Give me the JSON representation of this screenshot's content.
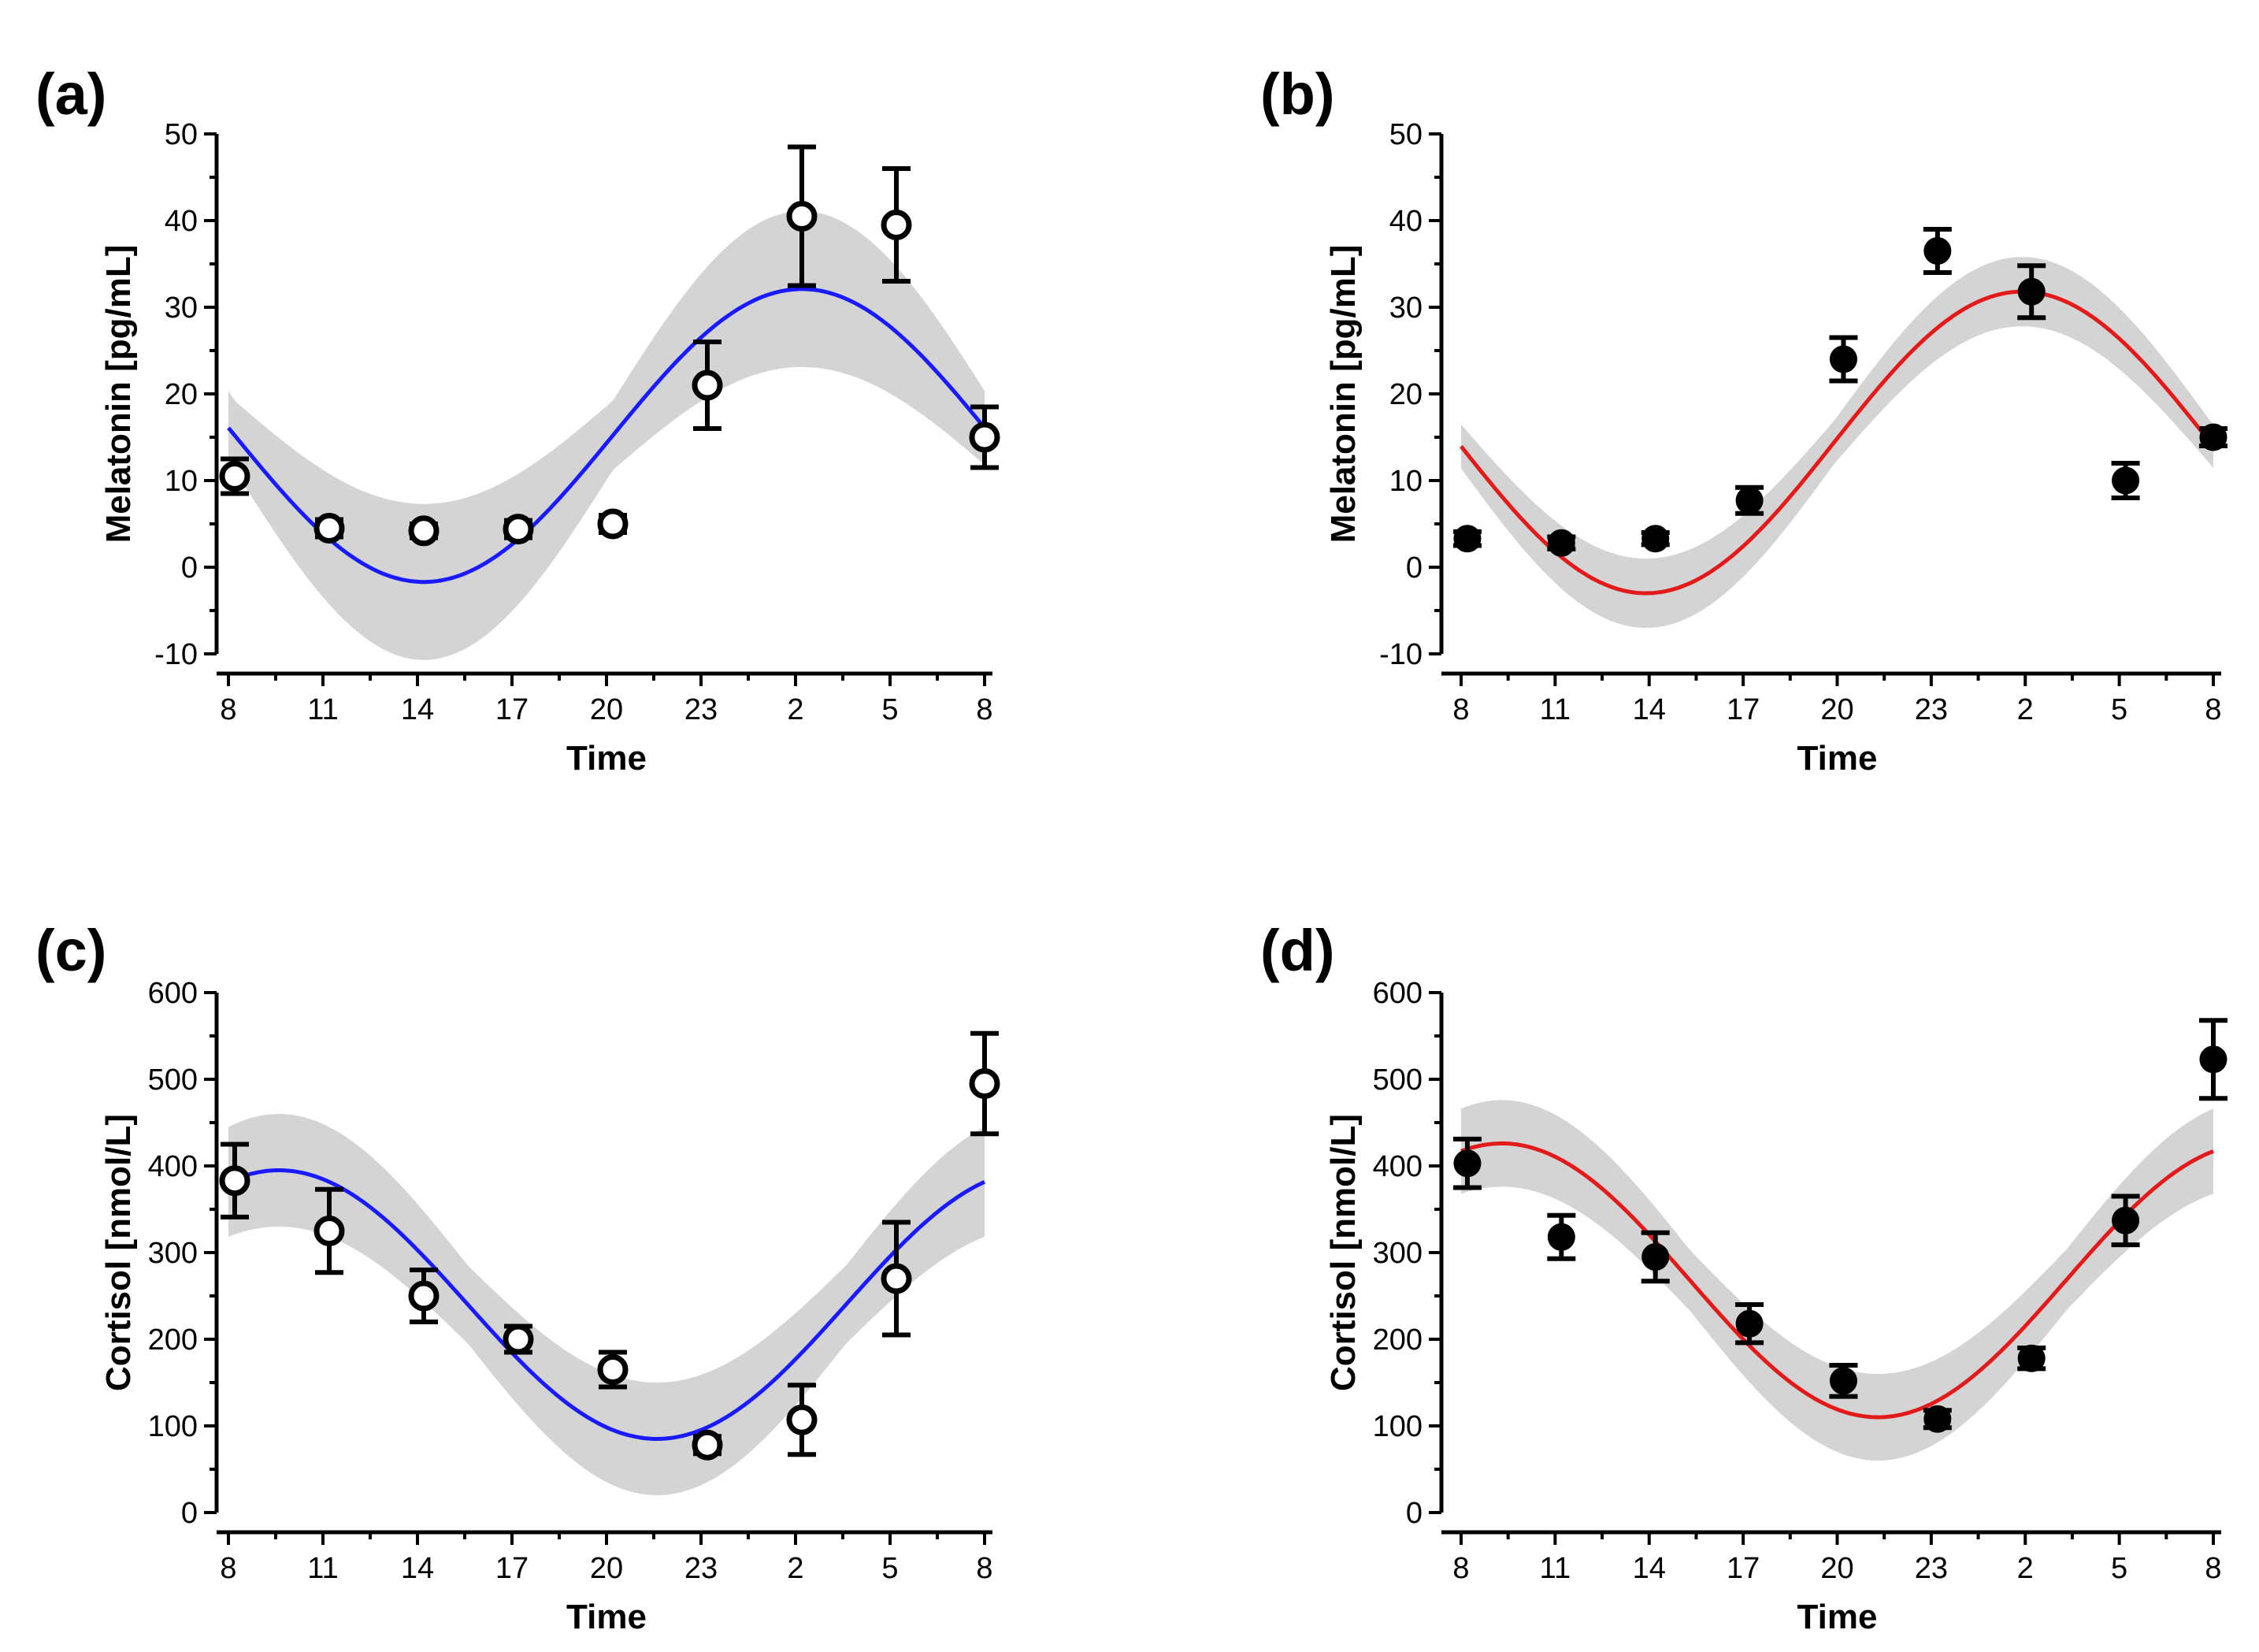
{
  "chart_data": [
    {
      "type": "scatter",
      "panel_label": "(a)",
      "xlabel": "Time",
      "ylabel": "Melatonin [pg/mL]",
      "x_tick_labels": [
        "8",
        "11",
        "14",
        "17",
        "20",
        "23",
        "2",
        "5",
        "8"
      ],
      "y_ticks": [
        -10,
        0,
        10,
        20,
        30,
        40,
        50
      ],
      "ylim": [
        -10,
        50
      ],
      "marker": "open",
      "fit_color": "#1a1aff",
      "fit": {
        "mesor": 15.2,
        "amplitude": 16.9,
        "peak_hours_after_start": 18.2,
        "band_base": 4.0,
        "band_amp": 5.0
      },
      "points": [
        {
          "x": 0.2,
          "y": 10.5,
          "err": 2.0
        },
        {
          "x": 3.2,
          "y": 4.5,
          "err": 1.0
        },
        {
          "x": 6.2,
          "y": 4.2,
          "err": 0.8
        },
        {
          "x": 9.2,
          "y": 4.4,
          "err": 1.0
        },
        {
          "x": 12.2,
          "y": 5.0,
          "err": 1.0
        },
        {
          "x": 15.2,
          "y": 21.0,
          "err": 5.0
        },
        {
          "x": 18.2,
          "y": 40.5,
          "err": 8.0
        },
        {
          "x": 21.2,
          "y": 39.5,
          "err": 6.5
        },
        {
          "x": 24.0,
          "y": 15.0,
          "err": 3.5
        }
      ]
    },
    {
      "type": "scatter",
      "panel_label": "(b)",
      "xlabel": "Time",
      "ylabel": "Melatonin [pg/mL]",
      "x_tick_labels": [
        "8",
        "11",
        "14",
        "17",
        "20",
        "23",
        "2",
        "5",
        "8"
      ],
      "y_ticks": [
        -10,
        0,
        10,
        20,
        30,
        40,
        50
      ],
      "ylim": [
        -10,
        50
      ],
      "marker": "filled",
      "fit_color": "#e31a1a",
      "fit": {
        "mesor": 14.4,
        "amplitude": 17.4,
        "peak_hours_after_start": 17.9,
        "band_base": 2.5,
        "band_amp": 1.5
      },
      "points": [
        {
          "x": 0.2,
          "y": 3.3,
          "err": 0.8
        },
        {
          "x": 3.2,
          "y": 2.8,
          "err": 0.7
        },
        {
          "x": 6.2,
          "y": 3.3,
          "err": 0.7
        },
        {
          "x": 9.2,
          "y": 7.7,
          "err": 1.5
        },
        {
          "x": 12.2,
          "y": 24.0,
          "err": 2.5
        },
        {
          "x": 15.2,
          "y": 36.5,
          "err": 2.5
        },
        {
          "x": 18.2,
          "y": 31.8,
          "err": 3.0
        },
        {
          "x": 21.2,
          "y": 10.0,
          "err": 2.0
        },
        {
          "x": 24.0,
          "y": 15.0,
          "err": 1.0
        }
      ]
    },
    {
      "type": "scatter",
      "panel_label": "(c)",
      "xlabel": "Time",
      "ylabel": "Cortisol [nmol/L]",
      "x_tick_labels": [
        "8",
        "11",
        "14",
        "17",
        "20",
        "23",
        "2",
        "5",
        "8"
      ],
      "y_ticks": [
        0,
        100,
        200,
        300,
        400,
        500,
        600
      ],
      "ylim": [
        0,
        600
      ],
      "marker": "open",
      "fit_color": "#1a1aff",
      "fit": {
        "mesor": 240,
        "amplitude": 155,
        "peak_hours_after_start": 1.6,
        "band_base": 45,
        "band_amp": 20
      },
      "points": [
        {
          "x": 0.2,
          "y": 383,
          "err": 42
        },
        {
          "x": 3.2,
          "y": 325,
          "err": 48
        },
        {
          "x": 6.2,
          "y": 250,
          "err": 30
        },
        {
          "x": 9.2,
          "y": 200,
          "err": 15
        },
        {
          "x": 12.2,
          "y": 165,
          "err": 20
        },
        {
          "x": 15.2,
          "y": 78,
          "err": 10
        },
        {
          "x": 18.2,
          "y": 107,
          "err": 40
        },
        {
          "x": 21.2,
          "y": 270,
          "err": 65
        },
        {
          "x": 24.0,
          "y": 495,
          "err": 58
        }
      ]
    },
    {
      "type": "scatter",
      "panel_label": "(d)",
      "xlabel": "Time",
      "ylabel": "Cortisol [nmol/L]",
      "x_tick_labels": [
        "8",
        "11",
        "14",
        "17",
        "20",
        "23",
        "2",
        "5",
        "8"
      ],
      "y_ticks": [
        0,
        100,
        200,
        300,
        400,
        500,
        600
      ],
      "ylim": [
        0,
        600
      ],
      "marker": "filled",
      "fit_color": "#e31a1a",
      "fit": {
        "mesor": 268,
        "amplitude": 158,
        "peak_hours_after_start": 1.3,
        "band_base": 35,
        "band_amp": 15
      },
      "points": [
        {
          "x": 0.2,
          "y": 403,
          "err": 28
        },
        {
          "x": 3.2,
          "y": 318,
          "err": 25
        },
        {
          "x": 6.2,
          "y": 295,
          "err": 28
        },
        {
          "x": 9.2,
          "y": 218,
          "err": 22
        },
        {
          "x": 12.2,
          "y": 152,
          "err": 18
        },
        {
          "x": 15.2,
          "y": 108,
          "err": 10
        },
        {
          "x": 18.2,
          "y": 178,
          "err": 12
        },
        {
          "x": 21.2,
          "y": 337,
          "err": 28
        },
        {
          "x": 24.0,
          "y": 523,
          "err": 45
        }
      ]
    }
  ]
}
